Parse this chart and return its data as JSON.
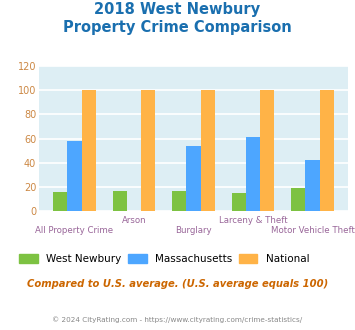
{
  "title_line1": "2018 West Newbury",
  "title_line2": "Property Crime Comparison",
  "categories": [
    "All Property Crime",
    "Arson",
    "Burglary",
    "Larceny & Theft",
    "Motor Vehicle Theft"
  ],
  "west_newbury": [
    16,
    17,
    17,
    15,
    19
  ],
  "massachusetts": [
    58,
    0,
    54,
    61,
    42
  ],
  "national": [
    100,
    100,
    100,
    100,
    100
  ],
  "color_wn": "#7dc242",
  "color_ma": "#4da6ff",
  "color_nat": "#ffb347",
  "ylabel_vals": [
    0,
    20,
    40,
    60,
    80,
    100,
    120
  ],
  "ylim": [
    0,
    120
  ],
  "bg_color": "#ddeef4",
  "grid_color": "#ffffff",
  "legend_labels": [
    "West Newbury",
    "Massachusetts",
    "National"
  ],
  "subtitle": "Compared to U.S. average. (U.S. average equals 100)",
  "footer": "© 2024 CityRating.com - https://www.cityrating.com/crime-statistics/",
  "title_color": "#1a6faf",
  "subtitle_color": "#cc6600",
  "footer_color": "#888888",
  "cat_color": "#996699",
  "ytick_color": "#cc8844"
}
